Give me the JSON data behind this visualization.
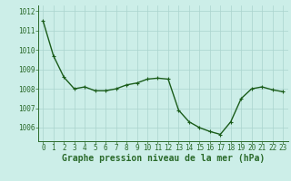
{
  "x": [
    0,
    1,
    2,
    3,
    4,
    5,
    6,
    7,
    8,
    9,
    10,
    11,
    12,
    13,
    14,
    15,
    16,
    17,
    18,
    19,
    20,
    21,
    22,
    23
  ],
  "y": [
    1011.5,
    1009.7,
    1008.6,
    1008.0,
    1008.1,
    1007.9,
    1007.9,
    1008.0,
    1008.2,
    1008.3,
    1008.5,
    1008.55,
    1008.5,
    1006.9,
    1006.3,
    1006.0,
    1005.8,
    1005.65,
    1006.3,
    1007.5,
    1008.0,
    1008.1,
    1007.95,
    1007.85
  ],
  "line_color": "#1a5c1a",
  "marker": "+",
  "marker_color": "#1a5c1a",
  "bg_color": "#cceee8",
  "grid_color": "#aad4ce",
  "xlabel": "Graphe pression niveau de la mer (hPa)",
  "xlabel_fontsize": 7,
  "yticks": [
    1006,
    1007,
    1008,
    1009,
    1010,
    1011,
    1012
  ],
  "xticks": [
    0,
    1,
    2,
    3,
    4,
    5,
    6,
    7,
    8,
    9,
    10,
    11,
    12,
    13,
    14,
    15,
    16,
    17,
    18,
    19,
    20,
    21,
    22,
    23
  ],
  "ylim": [
    1005.3,
    1012.3
  ],
  "xlim": [
    -0.5,
    23.5
  ],
  "tick_fontsize": 5.5,
  "line_width": 1.0,
  "marker_size": 3.5,
  "axis_color": "#2a6a2a"
}
